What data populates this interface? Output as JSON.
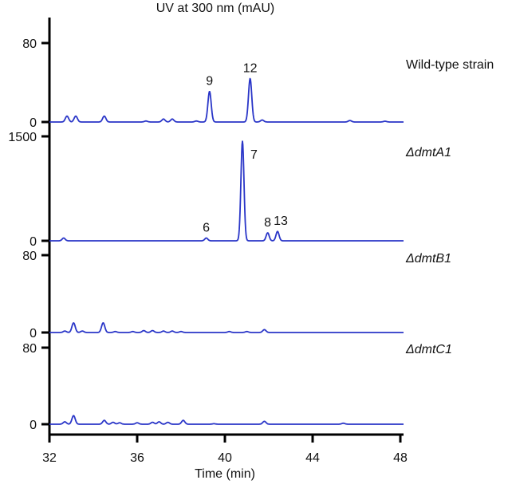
{
  "chart_data": {
    "type": "line",
    "title": "UV at 300 nm (mAU)",
    "xlabel": "Time (min)",
    "ylabel": "UV at 300 nm (mAU)",
    "xlim": [
      32,
      48
    ],
    "x_ticks": [
      32,
      36,
      40,
      44,
      48
    ],
    "line_color": "#2a36c8",
    "grid": false,
    "legend": "none (panel labels on right)",
    "panels": [
      {
        "name": "Wild-type strain",
        "italic": false,
        "ylim": [
          0,
          80
        ],
        "y_ticks": [
          0,
          80
        ],
        "baseline_y": 153,
        "top_y": 54,
        "peaks": [
          {
            "x": 32.8,
            "y": 6
          },
          {
            "x": 33.2,
            "y": 6
          },
          {
            "x": 34.5,
            "y": 6
          },
          {
            "x": 36.4,
            "y": 1
          },
          {
            "x": 37.2,
            "y": 3
          },
          {
            "x": 37.6,
            "y": 3
          },
          {
            "x": 38.7,
            "y": 1
          },
          {
            "x": 39.3,
            "y": 31,
            "label": "9"
          },
          {
            "x": 41.15,
            "y": 44,
            "label": "12"
          },
          {
            "x": 41.7,
            "y": 2
          },
          {
            "x": 45.7,
            "y": 1.5
          },
          {
            "x": 47.3,
            "y": 0.8
          }
        ]
      },
      {
        "name": "ΔdmtA1",
        "italic": true,
        "ylim": [
          0,
          1500
        ],
        "y_ticks": [
          0,
          1500
        ],
        "baseline_y": 302,
        "top_y": 171,
        "peaks": [
          {
            "x": 32.65,
            "y": 40
          },
          {
            "x": 39.15,
            "y": 40,
            "label": "6"
          },
          {
            "x": 40.8,
            "y": 1430,
            "label": "7"
          },
          {
            "x": 41.95,
            "y": 115,
            "label": "8"
          },
          {
            "x": 42.4,
            "y": 135,
            "label": "13"
          }
        ]
      },
      {
        "name": "ΔdmtB1",
        "italic": true,
        "ylim": [
          0,
          80
        ],
        "y_ticks": [
          0,
          80
        ],
        "baseline_y": 417,
        "top_y": 320,
        "peaks": [
          {
            "x": 32.7,
            "y": 1.5
          },
          {
            "x": 33.1,
            "y": 10
          },
          {
            "x": 33.5,
            "y": 1.5
          },
          {
            "x": 34.45,
            "y": 10
          },
          {
            "x": 35.0,
            "y": 1
          },
          {
            "x": 35.8,
            "y": 1
          },
          {
            "x": 36.3,
            "y": 2
          },
          {
            "x": 36.7,
            "y": 2
          },
          {
            "x": 37.2,
            "y": 1.5
          },
          {
            "x": 37.6,
            "y": 1.5
          },
          {
            "x": 38.0,
            "y": 1
          },
          {
            "x": 40.2,
            "y": 1
          },
          {
            "x": 41.0,
            "y": 1
          },
          {
            "x": 41.8,
            "y": 3
          }
        ]
      },
      {
        "name": "ΔdmtC1",
        "italic": true,
        "ylim": [
          0,
          80
        ],
        "y_ticks": [
          0,
          80
        ],
        "baseline_y": 532,
        "top_y": 436,
        "peaks": [
          {
            "x": 32.7,
            "y": 2.5
          },
          {
            "x": 33.1,
            "y": 9
          },
          {
            "x": 34.5,
            "y": 4
          },
          {
            "x": 34.9,
            "y": 2
          },
          {
            "x": 35.2,
            "y": 1.5
          },
          {
            "x": 36.0,
            "y": 1.5
          },
          {
            "x": 36.7,
            "y": 2
          },
          {
            "x": 37.0,
            "y": 2.5
          },
          {
            "x": 37.4,
            "y": 2
          },
          {
            "x": 38.1,
            "y": 4
          },
          {
            "x": 39.5,
            "y": 0.5
          },
          {
            "x": 41.8,
            "y": 3
          },
          {
            "x": 45.4,
            "y": 1
          }
        ]
      }
    ]
  }
}
